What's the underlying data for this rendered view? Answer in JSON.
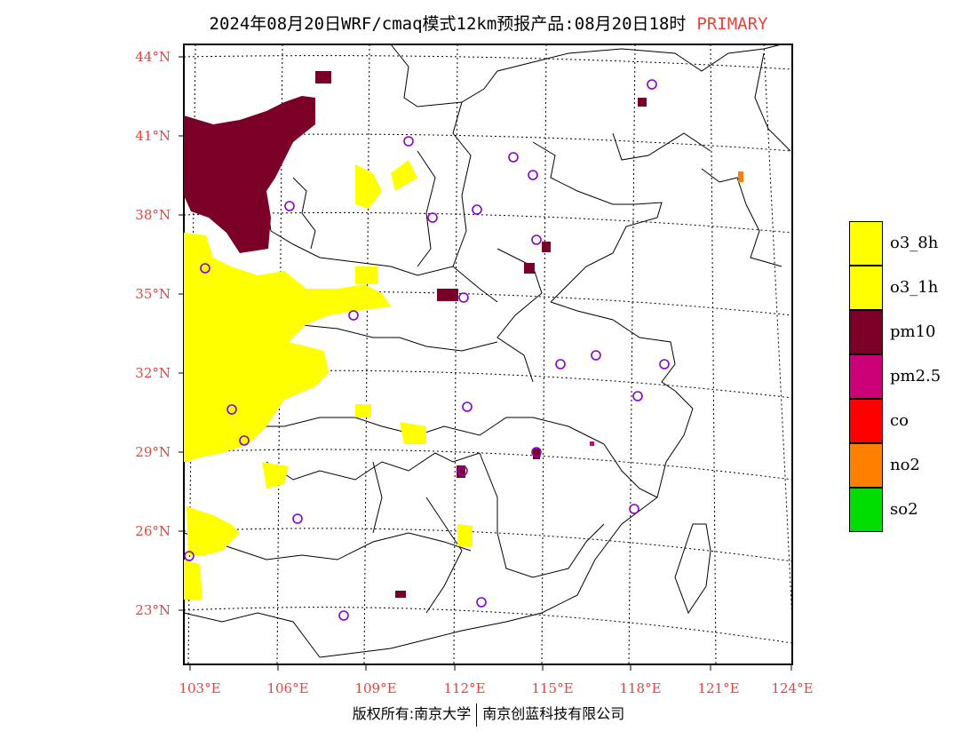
{
  "header": {
    "title": "2024年08月20日WRF/cmaq模式12km预报产品:08月20日18时",
    "tag": "PRIMARY"
  },
  "axes": {
    "lat_labels": [
      "44°N",
      "41°N",
      "38°N",
      "35°N",
      "32°N",
      "29°N",
      "26°N",
      "23°N"
    ],
    "lon_labels": [
      "103°E",
      "106°E",
      "109°E",
      "112°E",
      "115°E",
      "118°E",
      "121°E",
      "124°E"
    ]
  },
  "legend": [
    {
      "label": "o3_8h",
      "color": "#ffff00"
    },
    {
      "label": "o3_1h",
      "color": "#ffff00"
    },
    {
      "label": "pm10",
      "color": "#7a0027"
    },
    {
      "label": "pm2.5",
      "color": "#cc0077"
    },
    {
      "label": "co",
      "color": "#ff0000"
    },
    {
      "label": "no2",
      "color": "#ff7f00"
    },
    {
      "label": "so2",
      "color": "#00dd00"
    }
  ],
  "colors": {
    "axis_label": "#e8443c",
    "station_marker": "#8800cc"
  },
  "footer": {
    "left": "版权所有:南京大学",
    "right": "南京创蓝科技有限公司"
  }
}
